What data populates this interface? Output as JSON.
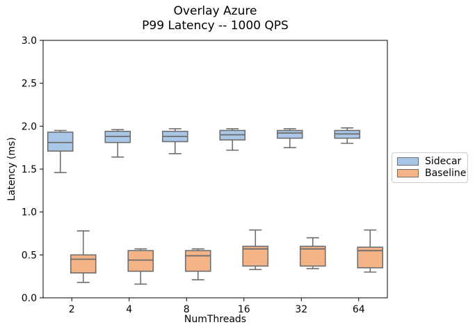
{
  "chart_data": {
    "type": "boxplot",
    "title": "Overlay Azure\nP99 Latency -- 1000 QPS",
    "title_lines": [
      "Overlay Azure",
      "P99 Latency -- 1000 QPS"
    ],
    "xlabel": "NumThreads",
    "ylabel": "Latency (ms)",
    "categories": [
      "2",
      "4",
      "8",
      "16",
      "32",
      "64"
    ],
    "ylim": [
      0.0,
      3.0
    ],
    "yticks": [
      0.0,
      0.5,
      1.0,
      1.5,
      2.0,
      2.5,
      3.0
    ],
    "ytick_labels": [
      "0.0",
      "0.5",
      "1.0",
      "1.5",
      "2.0",
      "2.5",
      "3.0"
    ],
    "grid": false,
    "legend_position": "outside-right",
    "legend_entries": [
      "Sidecar",
      "Baseline"
    ],
    "series": [
      {
        "name": "Sidecar",
        "fill_color": "#abc7e8",
        "edge_color": "#6e6e6e",
        "boxes": [
          {
            "category": "2",
            "whislo": 1.46,
            "q1": 1.71,
            "med": 1.81,
            "q3": 1.93,
            "whishi": 1.95
          },
          {
            "category": "4",
            "whislo": 1.64,
            "q1": 1.81,
            "med": 1.88,
            "q3": 1.94,
            "whishi": 1.96
          },
          {
            "category": "8",
            "whislo": 1.68,
            "q1": 1.82,
            "med": 1.88,
            "q3": 1.94,
            "whishi": 1.97
          },
          {
            "category": "16",
            "whislo": 1.72,
            "q1": 1.84,
            "med": 1.9,
            "q3": 1.95,
            "whishi": 1.97
          },
          {
            "category": "32",
            "whislo": 1.75,
            "q1": 1.86,
            "med": 1.92,
            "q3": 1.95,
            "whishi": 1.97
          },
          {
            "category": "64",
            "whislo": 1.8,
            "q1": 1.86,
            "med": 1.91,
            "q3": 1.95,
            "whishi": 1.98
          }
        ]
      },
      {
        "name": "Baseline",
        "fill_color": "#f4b488",
        "edge_color": "#6e6e6e",
        "boxes": [
          {
            "category": "2",
            "whislo": 0.18,
            "q1": 0.29,
            "med": 0.45,
            "q3": 0.5,
            "whishi": 0.78
          },
          {
            "category": "4",
            "whislo": 0.16,
            "q1": 0.31,
            "med": 0.44,
            "q3": 0.55,
            "whishi": 0.57
          },
          {
            "category": "8",
            "whislo": 0.21,
            "q1": 0.31,
            "med": 0.49,
            "q3": 0.55,
            "whishi": 0.57
          },
          {
            "category": "16",
            "whislo": 0.33,
            "q1": 0.37,
            "med": 0.57,
            "q3": 0.6,
            "whishi": 0.79
          },
          {
            "category": "32",
            "whislo": 0.34,
            "q1": 0.37,
            "med": 0.57,
            "q3": 0.6,
            "whishi": 0.7
          },
          {
            "category": "64",
            "whislo": 0.3,
            "q1": 0.35,
            "med": 0.55,
            "q3": 0.59,
            "whishi": 0.79
          }
        ]
      }
    ]
  }
}
